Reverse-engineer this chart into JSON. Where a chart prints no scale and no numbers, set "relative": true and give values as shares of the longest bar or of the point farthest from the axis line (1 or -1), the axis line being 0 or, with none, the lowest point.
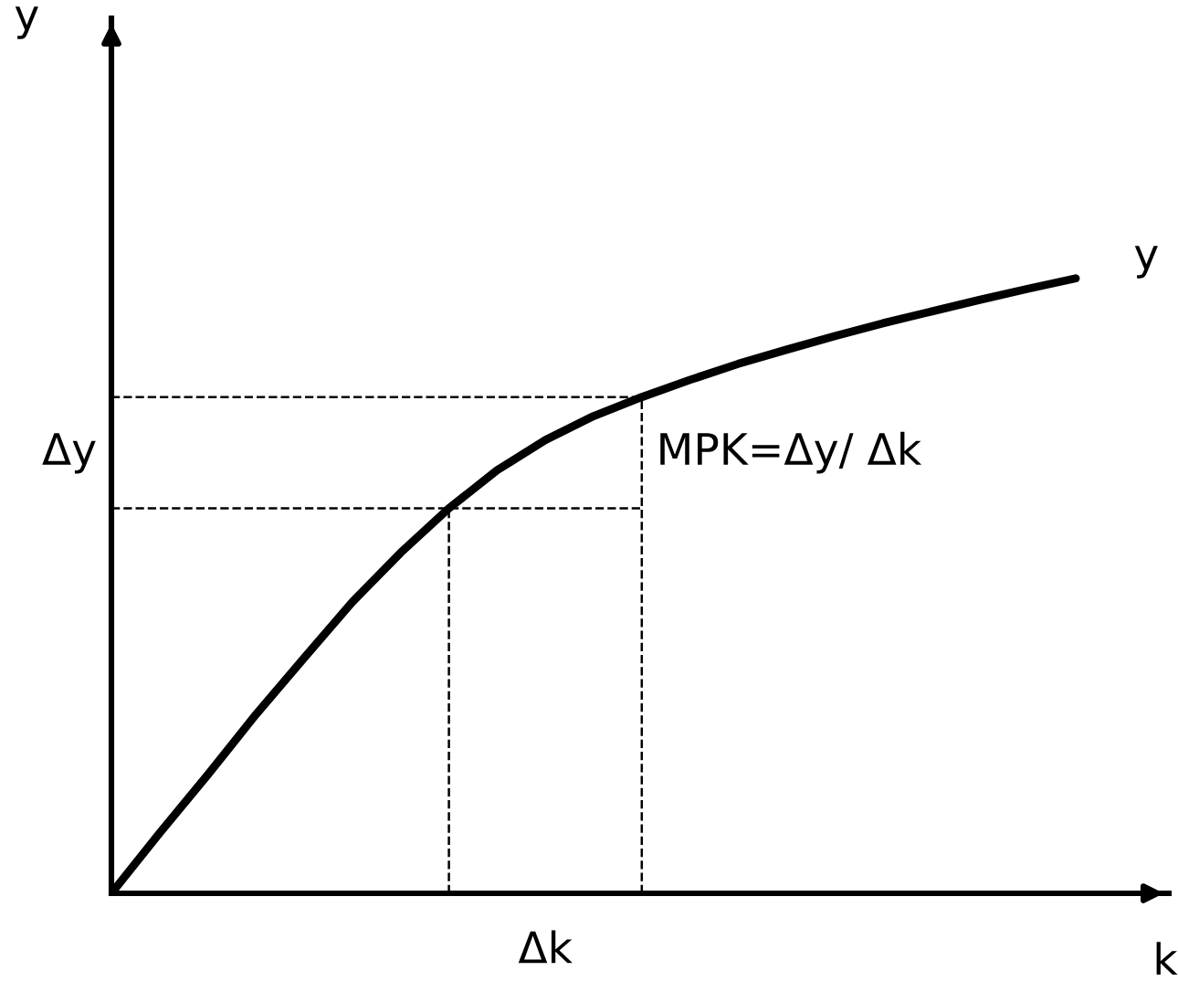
{
  "chart_data": {
    "type": "line",
    "relative": true,
    "xlabel": "k",
    "categories": [
      null,
      null,
      null,
      null,
      null,
      null,
      null,
      null,
      null,
      null,
      null,
      null,
      null,
      null,
      null,
      null,
      null,
      null,
      null,
      null,
      null
    ],
    "series": [
      {
        "name": "y",
        "color": "#000000",
        "values": [
          0,
          0.098,
          0.193,
          0.291,
          0.383,
          0.474,
          0.554,
          0.626,
          0.688,
          0.737,
          0.776,
          0.807,
          0.835,
          0.861,
          0.884,
          0.906,
          0.927,
          0.946,
          0.965,
          0.983,
          1.0
        ]
      }
    ],
    "ref_lines": [
      {
        "axis": "y",
        "value": 0.626,
        "line_style": "dashed",
        "color": "#000000"
      },
      {
        "axis": "y",
        "value": 0.807,
        "line_style": "dashed",
        "color": "#000000"
      }
    ],
    "annotations": [
      "Δy",
      "Δk",
      "MPK=Δy/ Δk",
      "y"
    ],
    "grid": false,
    "legend": false,
    "marker": "none",
    "line_style": "solid"
  }
}
